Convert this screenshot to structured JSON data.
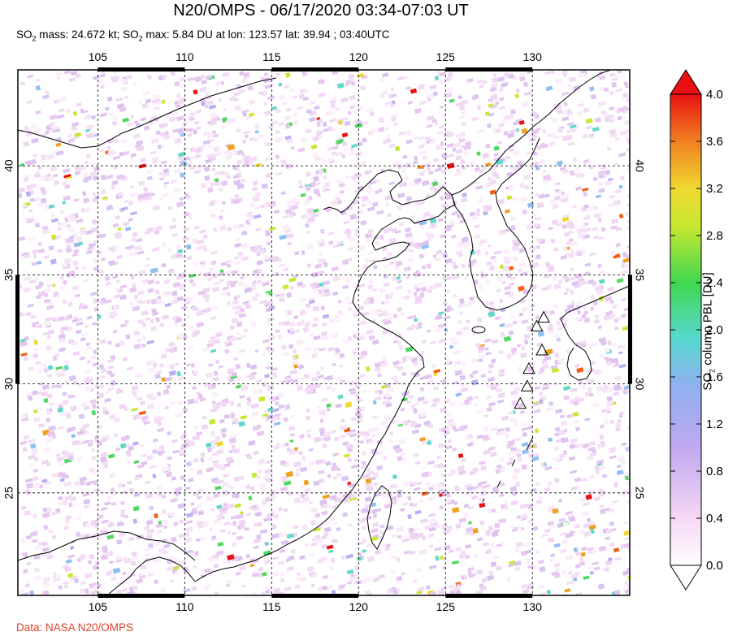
{
  "title": "N20/OMPS - 06/17/2020 03:34-07:03 UT",
  "subtitle": {
    "so2_mass_prefix": "SO",
    "so2_mass_sub": "2",
    "so2_mass_text": " mass: 24.672 kt; SO",
    "so2_max_sub": "2",
    "so2_max_text": " max: 5.84 DU at lon: 123.57 lat: 39.94 ; 03:40UTC"
  },
  "map": {
    "lon_ticks": [
      "105",
      "110",
      "115",
      "120",
      "125",
      "130"
    ],
    "lon_values": [
      105,
      110,
      115,
      120,
      125,
      130
    ],
    "lat_ticks": [
      "40",
      "35",
      "30",
      "25"
    ],
    "lat_values": [
      40,
      35,
      30,
      25
    ],
    "lon_range": [
      100.4,
      135.6
    ],
    "lat_range": [
      20.3,
      44.4
    ],
    "volcano_marker_lonlat": [
      [
        130.65,
        33.05
      ],
      [
        130.25,
        32.65
      ],
      [
        130.55,
        31.55
      ],
      [
        129.8,
        30.7
      ],
      [
        129.7,
        29.9
      ],
      [
        129.3,
        29.1
      ]
    ],
    "high_so2_lonlat": [
      [
        123.57,
        39.94
      ]
    ]
  },
  "colorbar": {
    "label_prefix": "SO",
    "label_sub": "2",
    "label_text": " column PBL [DU]",
    "ticks": [
      "4.0",
      "3.6",
      "3.2",
      "2.8",
      "2.4",
      "2.0",
      "1.6",
      "1.2",
      "0.8",
      "0.4",
      "0.0"
    ],
    "range": [
      0.0,
      4.0
    ],
    "colors": [
      "#ffffff",
      "#f5d8f5",
      "#d8b4f0",
      "#a8a4f0",
      "#80c8f0",
      "#50d8c8",
      "#40d850",
      "#c8e830",
      "#f0d830",
      "#f0a020",
      "#f06018",
      "#e81010"
    ]
  },
  "credit": "Data: NASA N20/OMPS"
}
